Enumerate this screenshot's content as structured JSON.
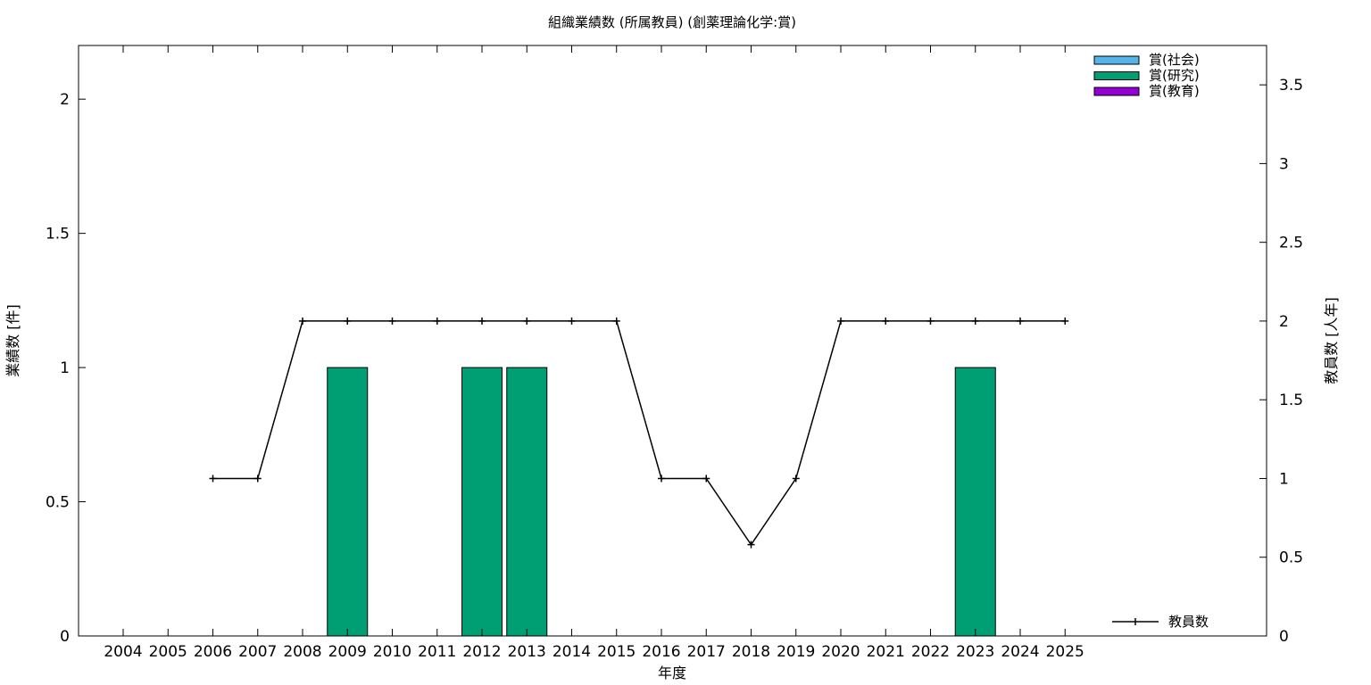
{
  "chart_data": {
    "type": "bar",
    "title": "組織業績数 (所属教員) (創薬理論化学:賞)",
    "xlabel": "年度",
    "ylabel": "業績数 [件]",
    "y2label": "教員数 [人年]",
    "categories": [
      "2004",
      "2005",
      "2006",
      "2007",
      "2008",
      "2009",
      "2010",
      "2011",
      "2012",
      "2013",
      "2014",
      "2015",
      "2016",
      "2017",
      "2018",
      "2019",
      "2020",
      "2021",
      "2022",
      "2023",
      "2024",
      "2025"
    ],
    "ylim": [
      0,
      2.2
    ],
    "yticks": [
      0,
      0.5,
      1,
      1.5,
      2
    ],
    "y2lim": [
      0,
      3.75
    ],
    "y2ticks": [
      0,
      0.5,
      1,
      1.5,
      2,
      2.5,
      3,
      3.5
    ],
    "grid": false,
    "legend_position": "top-right",
    "series": [
      {
        "name": "賞(社会)",
        "color": "#56b4e9",
        "values": [
          0,
          0,
          0,
          0,
          0,
          0,
          0,
          0,
          0,
          0,
          0,
          0,
          0,
          0,
          0,
          0,
          0,
          0,
          0,
          0,
          0,
          0
        ]
      },
      {
        "name": "賞(研究)",
        "color": "#009e73",
        "values": [
          0,
          0,
          0,
          0,
          0,
          1,
          0,
          0,
          1,
          1,
          0,
          0,
          0,
          0,
          0,
          0,
          0,
          0,
          0,
          1,
          0,
          0
        ]
      },
      {
        "name": "賞(教育)",
        "color": "#9400d3",
        "values": [
          0,
          0,
          0,
          0,
          0,
          0,
          0,
          0,
          0,
          0,
          0,
          0,
          0,
          0,
          0,
          0,
          0,
          0,
          0,
          0,
          0,
          0
        ]
      }
    ],
    "line_series": {
      "name": "教員数",
      "color": "#000000",
      "axis": "right",
      "x": [
        "2006",
        "2007",
        "2008",
        "2009",
        "2010",
        "2011",
        "2012",
        "2013",
        "2014",
        "2015",
        "2016",
        "2017",
        "2018",
        "2019",
        "2020",
        "2021",
        "2022",
        "2023",
        "2024",
        "2025"
      ],
      "values": [
        1,
        1,
        2,
        2,
        2,
        2,
        2,
        2,
        2,
        2,
        1,
        1,
        0.58,
        1,
        2,
        2,
        2,
        2,
        2,
        2
      ]
    }
  }
}
